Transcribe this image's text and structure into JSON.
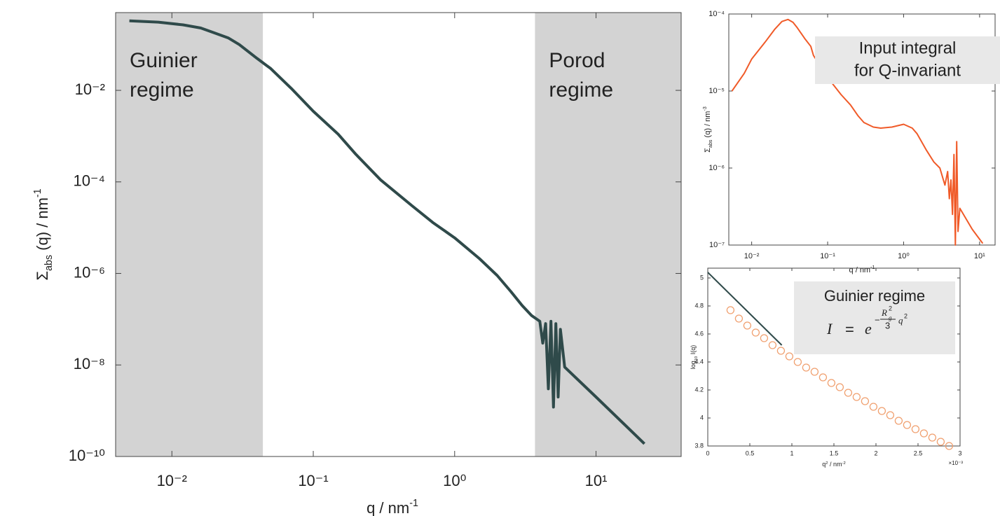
{
  "chart_data": [
    {
      "type": "line",
      "xscale": "log",
      "yscale": "log",
      "color": "#2f4a4a",
      "xlabel": {
        "text": "q / nm",
        "sup": "-1"
      },
      "ylabel": {
        "main": "Σ",
        "sub": "abs",
        "text": " (q) / nm",
        "sup": "-1"
      },
      "xlim": [
        0.004,
        40
      ],
      "ylim": [
        1e-10,
        0.5
      ],
      "xticks": [
        {
          "value": 0.01,
          "label": "10⁻²"
        },
        {
          "value": 0.1,
          "label": "10⁻¹"
        },
        {
          "value": 1,
          "label": "10⁰"
        },
        {
          "value": 10,
          "label": "10¹"
        }
      ],
      "yticks": [
        {
          "value": 1e-10,
          "label": "10⁻¹⁰"
        },
        {
          "value": 1e-08,
          "label": "10⁻⁸"
        },
        {
          "value": 1e-06,
          "label": "10⁻⁶"
        },
        {
          "value": 0.0001,
          "label": "10⁻⁴"
        },
        {
          "value": 0.01,
          "label": "10⁻²"
        }
      ],
      "regions": [
        {
          "label": [
            "Guinier",
            "regime"
          ],
          "x": [
            0.004,
            0.044
          ],
          "color": "#d3d3d3"
        },
        {
          "label": [
            "Porod",
            "regime"
          ],
          "x": [
            3.7,
            40
          ],
          "color": "#d3d3d3"
        }
      ],
      "x": [
        0.005,
        0.008,
        0.012,
        0.016,
        0.02,
        0.025,
        0.03,
        0.04,
        0.05,
        0.07,
        0.1,
        0.15,
        0.2,
        0.3,
        0.5,
        0.7,
        1,
        1.5,
        2,
        2.5,
        3,
        3.5,
        4,
        4.2,
        4.4,
        4.6,
        4.8,
        5,
        5.2,
        5.4,
        5.6,
        6,
        10,
        22
      ],
      "values": [
        0.33,
        0.31,
        0.27,
        0.23,
        0.18,
        0.14,
        0.1,
        0.05,
        0.03,
        0.011,
        0.0035,
        0.0011,
        0.0004,
        0.00011,
        3e-05,
        1.3e-05,
        6e-06,
        2.1e-06,
        9e-07,
        4e-07,
        2e-07,
        1.2e-07,
        9e-08,
        3e-08,
        8e-08,
        3e-09,
        9e-08,
        1.2e-09,
        8e-08,
        2e-09,
        6e-08,
        9e-09,
        2e-09,
        1.9e-10
      ]
    },
    {
      "type": "line",
      "xscale": "log",
      "yscale": "log",
      "color": "#f05a28",
      "xlabel": {
        "text": "q / nm",
        "sup": "-1"
      },
      "ylabel": {
        "main": "Σ",
        "sub": "abs",
        "text": " (q) / nm",
        "sup": "-3"
      },
      "xlim": [
        0.005,
        16
      ],
      "ylim": [
        1e-07,
        0.0001
      ],
      "xticks": [
        {
          "value": 0.01,
          "label": "10⁻²"
        },
        {
          "value": 0.1,
          "label": "10⁻¹"
        },
        {
          "value": 1,
          "label": "10⁰"
        },
        {
          "value": 10,
          "label": "10¹"
        }
      ],
      "yticks": [
        {
          "value": 1e-07,
          "label": "10⁻⁷"
        },
        {
          "value": 1e-06,
          "label": "10⁻⁶"
        },
        {
          "value": 1e-05,
          "label": "10⁻⁵"
        },
        {
          "value": 0.0001,
          "label": "10⁻⁴"
        }
      ],
      "annotation": [
        "Input integral",
        "for Q-invariant"
      ],
      "x": [
        0.0055,
        0.008,
        0.01,
        0.015,
        0.02,
        0.025,
        0.03,
        0.035,
        0.04,
        0.05,
        0.06,
        0.065,
        0.08,
        0.1,
        0.15,
        0.2,
        0.25,
        0.3,
        0.4,
        0.5,
        0.7,
        1,
        1.3,
        1.5,
        2,
        2.5,
        3,
        3.5,
        3.8,
        4,
        4.2,
        4.4,
        4.6,
        4.8,
        5,
        5.2,
        5.5,
        8,
        11
      ],
      "values": [
        1e-05,
        1.7e-05,
        2.6e-05,
        4.3e-05,
        6.3e-05,
        8e-05,
        8.5e-05,
        7.8e-05,
        6.6e-05,
        4.8e-05,
        3.8e-05,
        2.9e-05,
        2.1e-05,
        1.5e-05,
        9e-06,
        6.6e-06,
        4.8e-06,
        3.9e-06,
        3.4e-06,
        3.3e-06,
        3.4e-06,
        3.7e-06,
        3.3e-06,
        2.8e-06,
        1.7e-06,
        1.2e-06,
        1e-06,
        6e-07,
        9e-07,
        4e-07,
        7e-07,
        2.5e-07,
        1.5e-06,
        1e-07,
        2.2e-06,
        1.5e-07,
        3e-07,
        1.6e-07,
        1.05e-07
      ]
    },
    {
      "type": "scatter",
      "xlabel": {
        "text": "q",
        "sup": "2",
        "rest": " / nm",
        "sup2": "-2"
      },
      "ylabel": {
        "text": "log",
        "sub": "10",
        "rest": " I(q)"
      },
      "x_multiplier": "×10⁻³",
      "xlim": [
        0,
        3
      ],
      "ylim": [
        3.8,
        5.07
      ],
      "xticks": [
        0,
        0.5,
        1,
        1.5,
        2,
        2.5,
        3
      ],
      "yticks": [
        3.8,
        4,
        4.2,
        4.4,
        4.6,
        4.8,
        5
      ],
      "annotation": {
        "title": "Guinier regime",
        "formula": {
          "lhs": "I",
          "eq": "=",
          "base": "e",
          "sign": "−",
          "num": "R",
          "num_sup": "2",
          "num_sub": "g",
          "den": "3",
          "var": "q",
          "var_sup": "2"
        }
      },
      "series": [
        {
          "marker": "circle",
          "color": "#f0a070",
          "x": [
            0.27,
            0.37,
            0.47,
            0.57,
            0.67,
            0.77,
            0.87,
            0.97,
            1.07,
            1.17,
            1.27,
            1.37,
            1.47,
            1.57,
            1.67,
            1.77,
            1.87,
            1.97,
            2.07,
            2.17,
            2.27,
            2.37,
            2.47,
            2.57,
            2.67,
            2.77,
            2.87
          ],
          "values": [
            4.77,
            4.71,
            4.66,
            4.61,
            4.57,
            4.52,
            4.48,
            4.44,
            4.4,
            4.36,
            4.33,
            4.29,
            4.25,
            4.22,
            4.18,
            4.15,
            4.12,
            4.08,
            4.05,
            4.02,
            3.98,
            3.95,
            3.92,
            3.89,
            3.86,
            3.83,
            3.8
          ]
        },
        {
          "marker": "line",
          "color": "#2f4a4a",
          "x": [
            0,
            0.88
          ],
          "values": [
            5.04,
            4.52
          ]
        }
      ]
    }
  ]
}
